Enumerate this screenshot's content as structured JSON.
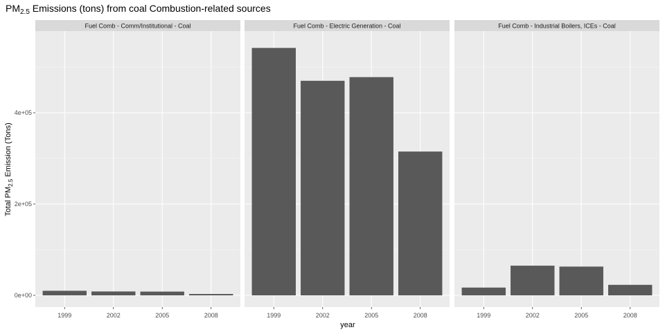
{
  "chart_data": {
    "type": "bar",
    "title_main": "PM",
    "title_sub": "2.5",
    "title_rest": " Emissions (tons) from coal Combustion-related sources",
    "xlabel": "year",
    "ylabel_main": "Total PM",
    "ylabel_sub": "2.5",
    "ylabel_rest": " Emission (Tons)",
    "categories": [
      "1999",
      "2002",
      "2005",
      "2008"
    ],
    "ylim": [
      0,
      560000
    ],
    "yticks": [
      0,
      200000,
      400000
    ],
    "ytick_labels": [
      "0e+00",
      "2e+05",
      "4e+05"
    ],
    "grid": true,
    "bar_color": "#595959",
    "panel_bg": "#ebebeb",
    "strip_bg": "#d9d9d9",
    "facets": [
      {
        "label": "Fuel Comb - Comm/Institutional - Coal",
        "values": [
          10000,
          8500,
          8200,
          3000
        ]
      },
      {
        "label": "Fuel Comb - Electric Generation - Coal",
        "values": [
          542000,
          470000,
          478000,
          315000
        ]
      },
      {
        "label": "Fuel Comb - Industrial Boilers, ICEs - Coal",
        "values": [
          17000,
          65000,
          63000,
          23000
        ]
      }
    ]
  }
}
